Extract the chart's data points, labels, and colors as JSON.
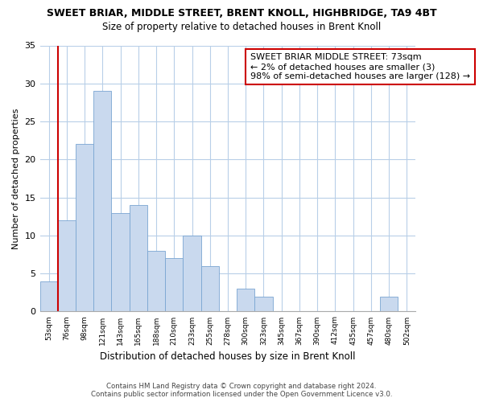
{
  "title": "SWEET BRIAR, MIDDLE STREET, BRENT KNOLL, HIGHBRIDGE, TA9 4BT",
  "subtitle": "Size of property relative to detached houses in Brent Knoll",
  "xlabel": "Distribution of detached houses by size in Brent Knoll",
  "ylabel": "Number of detached properties",
  "bar_labels": [
    "53sqm",
    "76sqm",
    "98sqm",
    "121sqm",
    "143sqm",
    "165sqm",
    "188sqm",
    "210sqm",
    "233sqm",
    "255sqm",
    "278sqm",
    "300sqm",
    "323sqm",
    "345sqm",
    "367sqm",
    "390sqm",
    "412sqm",
    "435sqm",
    "457sqm",
    "480sqm",
    "502sqm"
  ],
  "bar_values": [
    4,
    12,
    22,
    29,
    13,
    14,
    8,
    7,
    10,
    6,
    0,
    3,
    2,
    0,
    0,
    0,
    0,
    0,
    0,
    2,
    0
  ],
  "bar_color": "#c9d9ee",
  "bar_edge_color": "#7aa5d2",
  "marker_color": "#cc0000",
  "ylim": [
    0,
    35
  ],
  "yticks": [
    0,
    5,
    10,
    15,
    20,
    25,
    30,
    35
  ],
  "annotation_title": "SWEET BRIAR MIDDLE STREET: 73sqm",
  "annotation_line1": "← 2% of detached houses are smaller (3)",
  "annotation_line2": "98% of semi-detached houses are larger (128) →",
  "footer_line1": "Contains HM Land Registry data © Crown copyright and database right 2024.",
  "footer_line2": "Contains public sector information licensed under the Open Government Licence v3.0.",
  "background_color": "#ffffff",
  "grid_color": "#b8cfe8"
}
